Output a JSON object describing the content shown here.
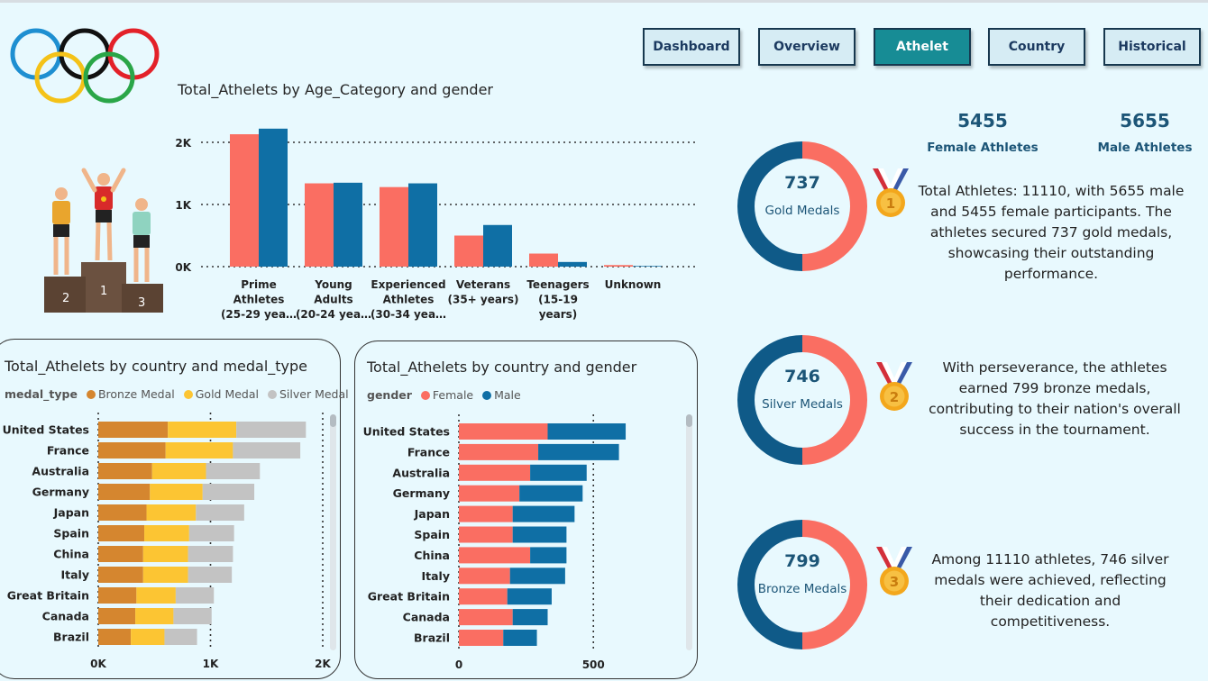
{
  "nav": {
    "buttons": [
      {
        "id": "dashboard",
        "label": "Dashboard"
      },
      {
        "id": "overview",
        "label": "Overview"
      },
      {
        "id": "athelet",
        "label": "Athelet"
      },
      {
        "id": "country",
        "label": "Country"
      },
      {
        "id": "historical",
        "label": "Historical"
      }
    ],
    "active": "athelet"
  },
  "colors": {
    "female": "#fa6e62",
    "male": "#0f6fa5",
    "bronze": "#d5862f",
    "gold": "#fcc533",
    "silver": "#c3c3c3",
    "ring_female": "#fa6e62",
    "ring_male": "#0f5a88",
    "text_dark": "#1c5577"
  },
  "age_chart": {
    "title": "Total_Athelets by Age_Category and gender",
    "chart_data": {
      "type": "bar",
      "title": "Total_Athelets by Age_Category and gender",
      "categories": [
        [
          "Prime",
          "Athletes",
          "(25-29 yea…"
        ],
        [
          "Young",
          "Adults",
          "(20-24 yea…"
        ],
        [
          "Experienced",
          "Athletes",
          "(30-34 yea…"
        ],
        [
          "Veterans",
          "(35+ years)"
        ],
        [
          "Teenagers",
          "(15-19",
          "years)"
        ],
        [
          "Unknown"
        ]
      ],
      "series": [
        {
          "name": "Female",
          "values": [
            2130,
            1340,
            1280,
            500,
            210,
            25
          ]
        },
        {
          "name": "Male",
          "values": [
            2220,
            1350,
            1340,
            670,
            75,
            10
          ]
        }
      ],
      "yticks": [
        0,
        1000,
        2000
      ],
      "ytick_labels": [
        "0K",
        "1K",
        "2K"
      ],
      "ylim": [
        0,
        2500
      ]
    }
  },
  "medal_chart": {
    "title": "Total_Athelets by country and medal_type",
    "legend_title": "medal_type",
    "chart_data": {
      "type": "bar",
      "orientation": "horizontal",
      "stacked": true,
      "categories": [
        "United States",
        "France",
        "Australia",
        "Germany",
        "Japan",
        "Spain",
        "China",
        "Italy",
        "Great Britain",
        "Canada",
        "Brazil"
      ],
      "series": [
        {
          "name": "Bronze Medal",
          "values": [
            620,
            600,
            480,
            460,
            430,
            410,
            400,
            400,
            340,
            330,
            290
          ]
        },
        {
          "name": "Gold Medal",
          "values": [
            610,
            600,
            480,
            470,
            440,
            400,
            400,
            400,
            350,
            340,
            300
          ]
        },
        {
          "name": "Silver Medal",
          "values": [
            620,
            600,
            480,
            460,
            430,
            400,
            400,
            390,
            340,
            340,
            290
          ]
        }
      ],
      "xticks": [
        0,
        1000,
        2000
      ],
      "xtick_labels": [
        "0K",
        "1K",
        "2K"
      ],
      "xlim": [
        0,
        2000
      ]
    }
  },
  "gender_chart": {
    "title": "Total_Athelets by country and gender",
    "legend_title": "gender",
    "chart_data": {
      "type": "bar",
      "orientation": "horizontal",
      "stacked": true,
      "categories": [
        "United States",
        "France",
        "Australia",
        "Germany",
        "Japan",
        "Spain",
        "China",
        "Italy",
        "Great Britain",
        "Canada",
        "Brazil"
      ],
      "series": [
        {
          "name": "Female",
          "values": [
            330,
            295,
            265,
            225,
            200,
            200,
            265,
            190,
            180,
            200,
            165
          ]
        },
        {
          "name": "Male",
          "values": [
            290,
            300,
            210,
            235,
            230,
            200,
            135,
            205,
            165,
            130,
            125
          ]
        }
      ],
      "xticks": [
        0,
        500
      ],
      "xtick_labels": [
        "0",
        "500"
      ],
      "xlim": [
        0,
        650
      ]
    }
  },
  "kpis": {
    "female": {
      "value": "5455",
      "label": "Female Athletes"
    },
    "male": {
      "value": "5655",
      "label": "Male Athletes"
    }
  },
  "donuts": [
    {
      "value": "737",
      "label": "Gold Medals",
      "medal_number": "1",
      "female_fraction": 0.5,
      "text": "Total Athletes: 11110, with 5655 male and 5455 female participants. The athletes secured 737 gold medals, showcasing their outstanding performance."
    },
    {
      "value": "746",
      "label": "Silver Medals",
      "medal_number": "2",
      "female_fraction": 0.5,
      "text": "With perseverance, the athletes earned 799 bronze medals, contributing to their nation's overall success in the tournament."
    },
    {
      "value": "799",
      "label": "Bronze Medals",
      "medal_number": "3",
      "female_fraction": 0.5,
      "text": "Among 11110 athletes, 746 silver medals were achieved, reflecting their dedication and competitiveness."
    }
  ],
  "podium": {
    "places": [
      "2",
      "1",
      "3"
    ]
  }
}
